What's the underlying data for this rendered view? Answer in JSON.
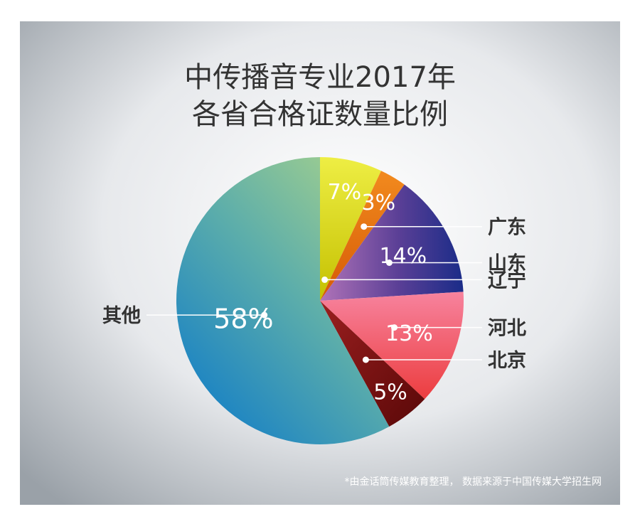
{
  "chart_data": {
    "type": "pie",
    "title": [
      "中传播音专业2017年",
      "各省合格证数量比例"
    ],
    "categories": [
      "辽宁",
      "广东",
      "山东",
      "河北",
      "北京",
      "其他"
    ],
    "values": [
      7,
      3,
      14,
      13,
      5,
      58
    ],
    "labels": [
      "7%",
      "3%",
      "14%",
      "13%",
      "5%",
      "58%"
    ],
    "colors": [
      "#e6e22a",
      "#ef7314",
      "#553c92",
      "#f25a6c",
      "#7d1414",
      "#3f9bc1"
    ]
  },
  "footer": {
    "source": "*由金话筒传媒教育整理， 数据来源于中国传媒大学招生网"
  }
}
